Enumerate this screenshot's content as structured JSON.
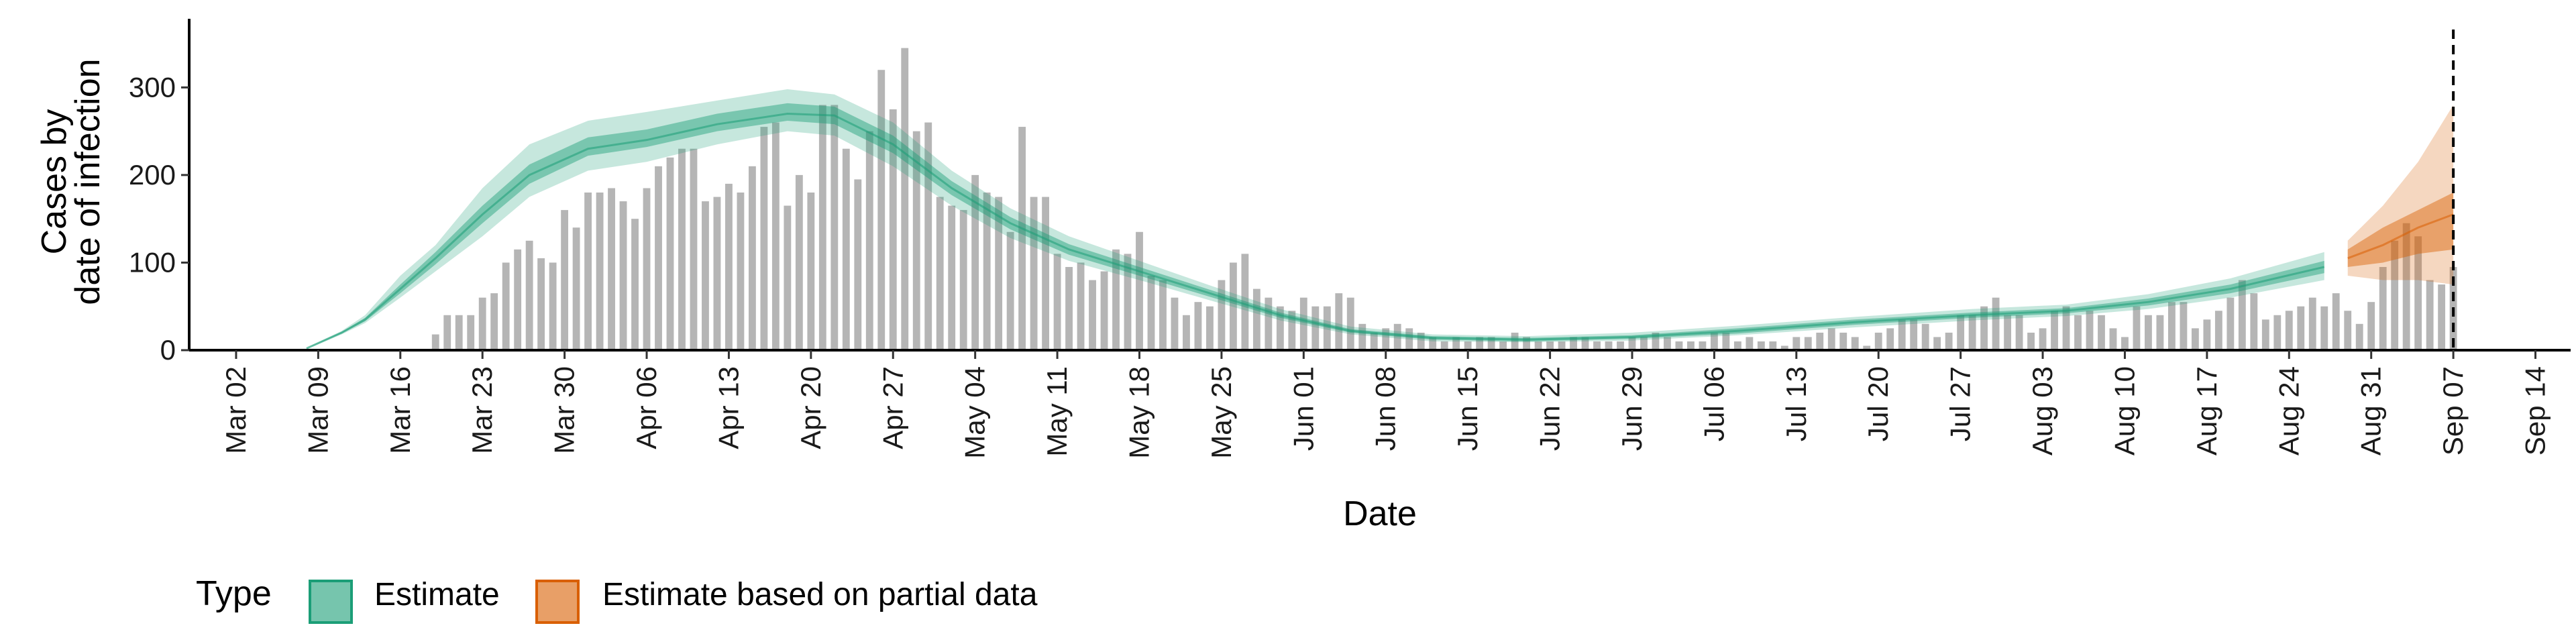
{
  "chart_data": {
    "type": "bar+ribbon",
    "xlabel": "Date",
    "ylabel": [
      "Cases by",
      "date of infection"
    ],
    "ylim": [
      0,
      360
    ],
    "yticks": [
      0,
      100,
      200,
      300
    ],
    "x_domain": [
      "2020-02-27",
      "2020-09-17"
    ],
    "xticks": [
      {
        "date": "2020-03-02",
        "label": "Mar 02"
      },
      {
        "date": "2020-03-09",
        "label": "Mar 09"
      },
      {
        "date": "2020-03-16",
        "label": "Mar 16"
      },
      {
        "date": "2020-03-23",
        "label": "Mar 23"
      },
      {
        "date": "2020-03-30",
        "label": "Mar 30"
      },
      {
        "date": "2020-04-06",
        "label": "Apr 06"
      },
      {
        "date": "2020-04-13",
        "label": "Apr 13"
      },
      {
        "date": "2020-04-20",
        "label": "Apr 20"
      },
      {
        "date": "2020-04-27",
        "label": "Apr 27"
      },
      {
        "date": "2020-05-04",
        "label": "May 04"
      },
      {
        "date": "2020-05-11",
        "label": "May 11"
      },
      {
        "date": "2020-05-18",
        "label": "May 18"
      },
      {
        "date": "2020-05-25",
        "label": "May 25"
      },
      {
        "date": "2020-06-01",
        "label": "Jun 01"
      },
      {
        "date": "2020-06-08",
        "label": "Jun 08"
      },
      {
        "date": "2020-06-15",
        "label": "Jun 15"
      },
      {
        "date": "2020-06-22",
        "label": "Jun 22"
      },
      {
        "date": "2020-06-29",
        "label": "Jun 29"
      },
      {
        "date": "2020-07-06",
        "label": "Jul 06"
      },
      {
        "date": "2020-07-13",
        "label": "Jul 13"
      },
      {
        "date": "2020-07-20",
        "label": "Jul 20"
      },
      {
        "date": "2020-07-27",
        "label": "Jul 27"
      },
      {
        "date": "2020-08-03",
        "label": "Aug 03"
      },
      {
        "date": "2020-08-10",
        "label": "Aug 10"
      },
      {
        "date": "2020-08-17",
        "label": "Aug 17"
      },
      {
        "date": "2020-08-24",
        "label": "Aug 24"
      },
      {
        "date": "2020-08-31",
        "label": "Aug 31"
      },
      {
        "date": "2020-09-07",
        "label": "Sep 07"
      },
      {
        "date": "2020-09-14",
        "label": "Sep 14"
      }
    ],
    "bars": {
      "start_date": "2020-03-19",
      "values": [
        18,
        40,
        40,
        40,
        60,
        65,
        100,
        115,
        125,
        105,
        100,
        160,
        140,
        180,
        180,
        185,
        170,
        150,
        185,
        210,
        220,
        230,
        230,
        170,
        175,
        190,
        180,
        210,
        255,
        260,
        165,
        200,
        180,
        280,
        280,
        230,
        195,
        250,
        320,
        275,
        345,
        250,
        260,
        175,
        165,
        160,
        200,
        180,
        175,
        135,
        255,
        175,
        175,
        110,
        95,
        100,
        80,
        90,
        115,
        110,
        135,
        85,
        80,
        60,
        40,
        55,
        50,
        80,
        100,
        110,
        70,
        60,
        50,
        45,
        60,
        50,
        50,
        65,
        60,
        30,
        20,
        25,
        30,
        25,
        20,
        15,
        10,
        15,
        10,
        15,
        15,
        10,
        20,
        15,
        10,
        10,
        10,
        15,
        15,
        10,
        10,
        10,
        15,
        15,
        20,
        15,
        10,
        10,
        10,
        20,
        20,
        10,
        15,
        10,
        10,
        5,
        15,
        15,
        20,
        25,
        20,
        15,
        5,
        20,
        25,
        35,
        35,
        30,
        15,
        20,
        40,
        40,
        50,
        60,
        40,
        40,
        20,
        25,
        45,
        50,
        40,
        45,
        40,
        25,
        15,
        50,
        40,
        40,
        55,
        55,
        25,
        35,
        45,
        60,
        80,
        65,
        35,
        40,
        45,
        50,
        60,
        50,
        65,
        45,
        30,
        55,
        95,
        125,
        145,
        130,
        80,
        75,
        95
      ]
    },
    "series": [
      {
        "name": "Estimate",
        "color": "#1b9e77",
        "points": [
          {
            "date": "2020-03-08",
            "median": 2,
            "lo50": 2,
            "hi50": 2,
            "lo90": 1,
            "hi90": 3
          },
          {
            "date": "2020-03-11",
            "median": 20,
            "lo50": 19,
            "hi50": 21,
            "lo90": 18,
            "hi90": 22
          },
          {
            "date": "2020-03-13",
            "median": 35,
            "lo50": 33,
            "hi50": 37,
            "lo90": 31,
            "hi90": 40
          },
          {
            "date": "2020-03-16",
            "median": 70,
            "lo50": 65,
            "hi50": 75,
            "lo90": 60,
            "hi90": 85
          },
          {
            "date": "2020-03-19",
            "median": 105,
            "lo50": 98,
            "hi50": 112,
            "lo90": 90,
            "hi90": 120
          },
          {
            "date": "2020-03-23",
            "median": 155,
            "lo50": 145,
            "hi50": 165,
            "lo90": 130,
            "hi90": 185
          },
          {
            "date": "2020-03-27",
            "median": 200,
            "lo50": 190,
            "hi50": 212,
            "lo90": 175,
            "hi90": 235
          },
          {
            "date": "2020-04-01",
            "median": 230,
            "lo50": 222,
            "hi50": 243,
            "lo90": 205,
            "hi90": 262
          },
          {
            "date": "2020-04-06",
            "median": 240,
            "lo50": 232,
            "hi50": 252,
            "lo90": 215,
            "hi90": 272
          },
          {
            "date": "2020-04-12",
            "median": 258,
            "lo50": 250,
            "hi50": 270,
            "lo90": 235,
            "hi90": 285
          },
          {
            "date": "2020-04-18",
            "median": 270,
            "lo50": 262,
            "hi50": 282,
            "lo90": 250,
            "hi90": 298
          },
          {
            "date": "2020-04-22",
            "median": 268,
            "lo50": 258,
            "hi50": 278,
            "lo90": 245,
            "hi90": 292
          },
          {
            "date": "2020-04-27",
            "median": 235,
            "lo50": 225,
            "hi50": 245,
            "lo90": 210,
            "hi90": 260
          },
          {
            "date": "2020-05-02",
            "median": 185,
            "lo50": 177,
            "hi50": 193,
            "lo90": 165,
            "hi90": 205
          },
          {
            "date": "2020-05-07",
            "median": 145,
            "lo50": 138,
            "hi50": 152,
            "lo90": 128,
            "hi90": 162
          },
          {
            "date": "2020-05-12",
            "median": 115,
            "lo50": 109,
            "hi50": 121,
            "lo90": 102,
            "hi90": 130
          },
          {
            "date": "2020-05-18",
            "median": 90,
            "lo50": 85,
            "hi50": 95,
            "lo90": 80,
            "hi90": 102
          },
          {
            "date": "2020-05-24",
            "median": 65,
            "lo50": 61,
            "hi50": 69,
            "lo90": 57,
            "hi90": 74
          },
          {
            "date": "2020-05-30",
            "median": 40,
            "lo50": 37,
            "hi50": 43,
            "lo90": 34,
            "hi90": 47
          },
          {
            "date": "2020-06-05",
            "median": 22,
            "lo50": 20,
            "hi50": 24,
            "lo90": 18,
            "hi90": 27
          },
          {
            "date": "2020-06-12",
            "median": 14,
            "lo50": 12,
            "hi50": 16,
            "lo90": 10,
            "hi90": 18
          },
          {
            "date": "2020-06-20",
            "median": 12,
            "lo50": 10,
            "hi50": 14,
            "lo90": 9,
            "hi90": 16
          },
          {
            "date": "2020-06-29",
            "median": 15,
            "lo50": 13,
            "hi50": 17,
            "lo90": 11,
            "hi90": 20
          },
          {
            "date": "2020-07-08",
            "median": 22,
            "lo50": 19,
            "hi50": 25,
            "lo90": 17,
            "hi90": 28
          },
          {
            "date": "2020-07-18",
            "median": 32,
            "lo50": 29,
            "hi50": 35,
            "lo90": 26,
            "hi90": 38
          },
          {
            "date": "2020-07-28",
            "median": 40,
            "lo50": 37,
            "hi50": 43,
            "lo90": 34,
            "hi90": 47
          },
          {
            "date": "2020-08-05",
            "median": 45,
            "lo50": 42,
            "hi50": 48,
            "lo90": 39,
            "hi90": 52
          },
          {
            "date": "2020-08-12",
            "median": 55,
            "lo50": 51,
            "hi50": 59,
            "lo90": 47,
            "hi90": 64
          },
          {
            "date": "2020-08-19",
            "median": 70,
            "lo50": 65,
            "hi50": 75,
            "lo90": 60,
            "hi90": 82
          },
          {
            "date": "2020-08-27",
            "median": 95,
            "lo50": 88,
            "hi50": 102,
            "lo90": 80,
            "hi90": 112
          }
        ]
      },
      {
        "name": "Estimate based on partial data",
        "color": "#d95f02",
        "points": [
          {
            "date": "2020-08-29",
            "median": 105,
            "lo50": 95,
            "hi50": 115,
            "lo90": 85,
            "hi90": 125
          },
          {
            "date": "2020-09-01",
            "median": 120,
            "lo50": 100,
            "hi50": 140,
            "lo90": 80,
            "hi90": 165
          },
          {
            "date": "2020-09-04",
            "median": 140,
            "lo50": 110,
            "hi50": 160,
            "lo90": 80,
            "hi90": 215
          },
          {
            "date": "2020-09-07",
            "median": 155,
            "lo50": 115,
            "hi50": 180,
            "lo90": 75,
            "hi90": 280
          }
        ]
      }
    ],
    "vline_date": "2020-09-07",
    "legend": {
      "title": "Type",
      "position": "bottom-left",
      "items": [
        "Estimate",
        "Estimate based on partial data"
      ]
    }
  }
}
